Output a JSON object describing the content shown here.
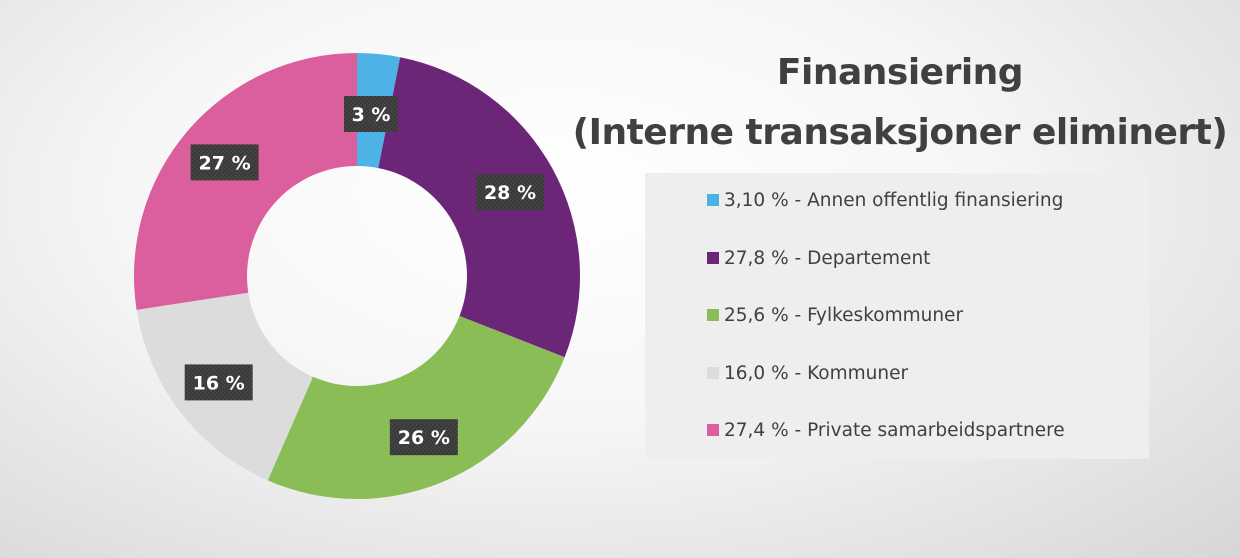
{
  "chart_data": {
    "type": "pie",
    "subtype": "donut",
    "title": [
      "Finansiering",
      "(Interne transaksjoner eliminert)"
    ],
    "categories": [
      "Annen offentlig finansiering",
      "Departement",
      "Fylkeskommuner",
      "Kommuner",
      "Private samarbeidspartnere"
    ],
    "values": [
      3.1,
      27.8,
      25.6,
      16.0,
      27.4
    ],
    "data_labels": [
      "3 %",
      "28 %",
      "26 %",
      "16 %",
      "27 %"
    ],
    "colors": [
      "#4db3e6",
      "#6b2678",
      "#8abd55",
      "#dcdcdc",
      "#dc5f9d"
    ],
    "legend": {
      "position": "right",
      "entries": [
        "3,10 % - Annen offentlig finansiering",
        "27,8 % - Departement",
        "25,6 % - Fylkeskommuner",
        "16,0 % - Kommuner",
        "27,4 % - Private samarbeidspartnere"
      ]
    }
  }
}
